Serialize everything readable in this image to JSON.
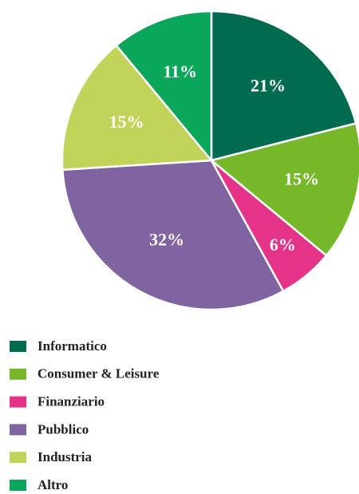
{
  "chart_data": {
    "type": "pie",
    "categories": [
      "Informatico",
      "Consumer & Leisure",
      "Finanziario",
      "Pubblico",
      "Industria",
      "Altro"
    ],
    "values": [
      21,
      15,
      6,
      32,
      15,
      11
    ],
    "value_labels": [
      "21%",
      "15%",
      "6%",
      "32%",
      "15%",
      "11%"
    ],
    "colors": [
      "#006b4f",
      "#76b82a",
      "#e5338a",
      "#8064a2",
      "#c2d35a",
      "#0aa65a"
    ],
    "legend": "bottom-left"
  }
}
